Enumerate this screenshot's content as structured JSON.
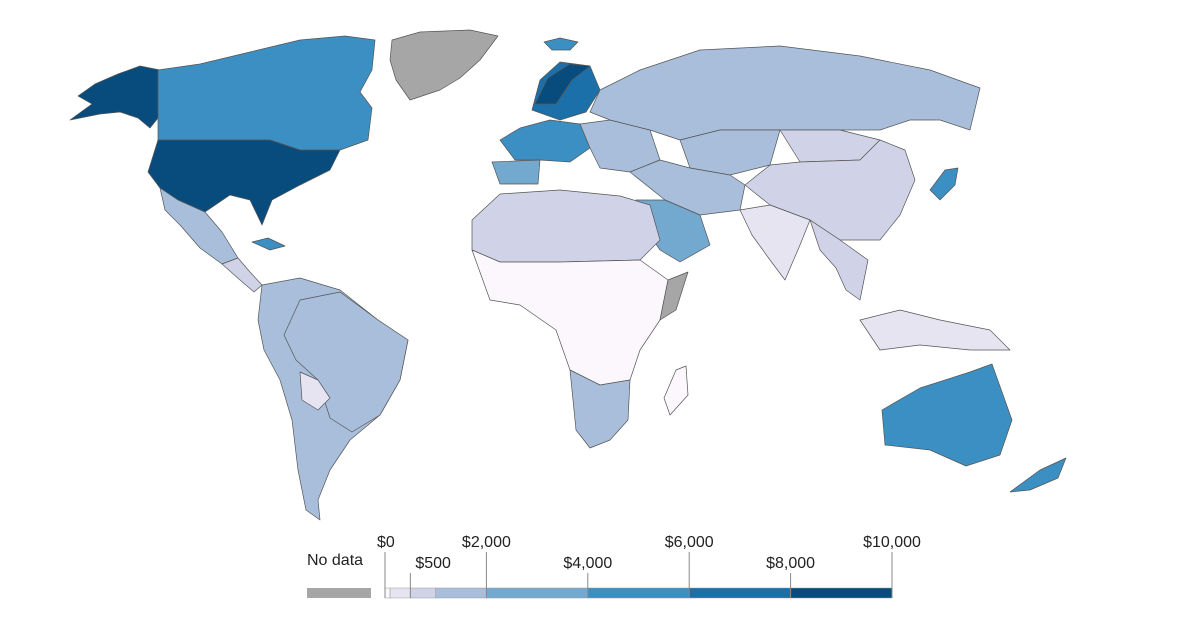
{
  "legend": {
    "no_data_label": "No data",
    "no_data_color": "#a6a6a6",
    "bins": [
      {
        "from": 0,
        "to": 100,
        "color": "#fbf7fc"
      },
      {
        "from": 100,
        "to": 500,
        "color": "#e6e4f1"
      },
      {
        "from": 500,
        "to": 1000,
        "color": "#d0d3e7"
      },
      {
        "from": 1000,
        "to": 2000,
        "color": "#a8bedb"
      },
      {
        "from": 2000,
        "to": 4000,
        "color": "#74a9cf"
      },
      {
        "from": 4000,
        "to": 6000,
        "color": "#3b8fc2"
      },
      {
        "from": 6000,
        "to": 8000,
        "color": "#1c70aa"
      },
      {
        "from": 8000,
        "to": 10000,
        "color": "#084c7e"
      }
    ],
    "ticks": [
      {
        "value": 0,
        "label": "$0",
        "row": "upper"
      },
      {
        "value": 500,
        "label": "$500",
        "row": "lower"
      },
      {
        "value": 2000,
        "label": "$2,000",
        "row": "upper"
      },
      {
        "value": 4000,
        "label": "$4,000",
        "row": "lower"
      },
      {
        "value": 6000,
        "label": "$6,000",
        "row": "upper"
      },
      {
        "value": 8000,
        "label": "$8,000",
        "row": "lower"
      },
      {
        "value": 10000,
        "label": "$10,000",
        "row": "upper"
      }
    ]
  },
  "regions": {
    "usa": "#084c7e",
    "alaska": "#084c7e",
    "canada": "#3b8fc2",
    "greenland": "#a6a6a6",
    "mexico": "#a8bedb",
    "central_america": "#d0d3e7",
    "cuba": "#3b8fc2",
    "south_america": "#a8bedb",
    "brazil": "#a8bedb",
    "bolivia": "#e6e4f1",
    "western_europe": "#3b8fc2",
    "spain": "#74a9cf",
    "scandinavia": "#1c70aa",
    "norway": "#084c7e",
    "eastern_europe": "#a8bedb",
    "russia": "#a8bedb",
    "kazakhstan": "#a8bedb",
    "middle_east": "#a8bedb",
    "saudi_arabia": "#74a9cf",
    "china": "#d0d3e7",
    "mongolia": "#d0d3e7",
    "india": "#e6e4f1",
    "southeast_asia": "#d0d3e7",
    "japan": "#3b8fc2",
    "north_africa": "#d0d3e7",
    "central_africa": "#fbf7fc",
    "southern_africa": "#a8bedb",
    "somalia": "#a6a6a6",
    "madagascar": "#fbf7fc",
    "australia": "#3b8fc2",
    "new_zealand": "#3b8fc2",
    "indonesia": "#e6e4f1",
    "iceland": "#3b8fc2"
  }
}
